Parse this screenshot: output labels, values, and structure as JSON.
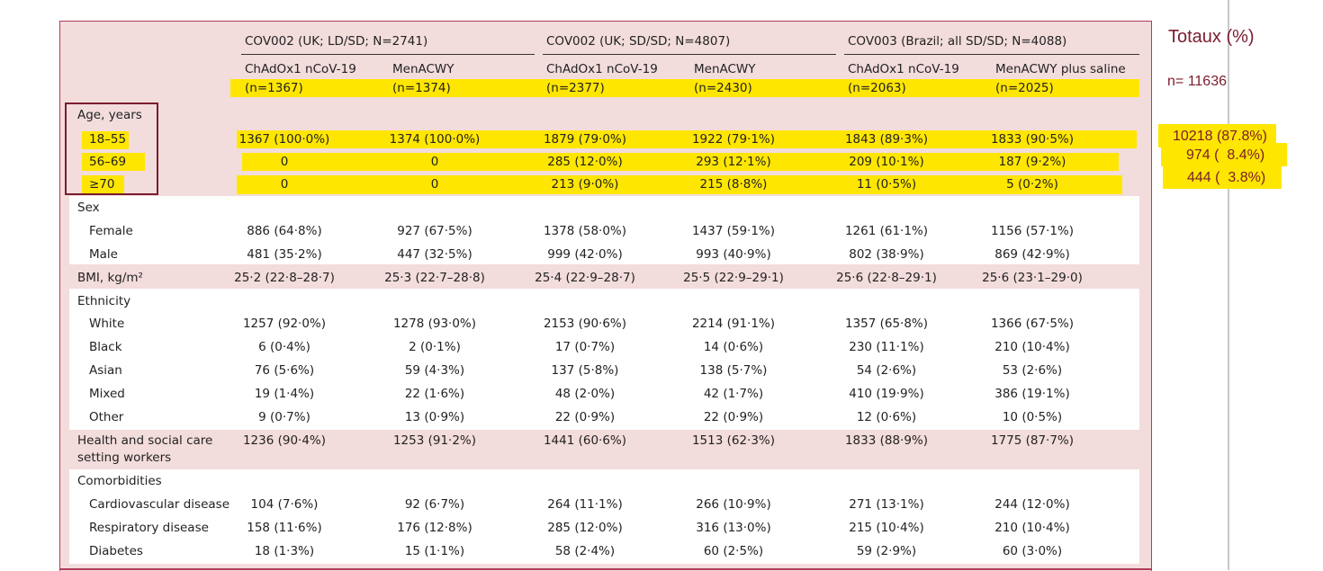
{
  "header": {
    "groups": [
      {
        "title": "COV002 (UK; LD/SD; N=2741)"
      },
      {
        "title": "COV002 (UK; SD/SD; N=4807)"
      },
      {
        "title": "COV003 (Brazil; all SD/SD; N=4088)"
      }
    ],
    "columns": [
      {
        "name": "ChAdOx1 nCoV-19",
        "n": "(n=1367)"
      },
      {
        "name": "MenACWY",
        "n": "(n=1374)"
      },
      {
        "name": "ChAdOx1 nCoV-19",
        "n": "(n=2377)"
      },
      {
        "name": "MenACWY",
        "n": "(n=2430)"
      },
      {
        "name": "ChAdOx1 nCoV-19",
        "n": "(n=2063)"
      },
      {
        "name": "MenACWY plus saline",
        "n": "(n=2025)"
      }
    ]
  },
  "rows": [
    {
      "label": "Age, years",
      "values": []
    },
    {
      "label": "18–55",
      "values": [
        "1367 (100·0%)",
        "1374 (100·0%)",
        "1879 (79·0%)",
        "1922 (79·1%)",
        "1843 (89·3%)",
        "1833 (90·5%)"
      ]
    },
    {
      "label": "56–69",
      "values": [
        "0",
        "0",
        "285 (12·0%)",
        "293 (12·1%)",
        "209 (10·1%)",
        "187 (9·2%)"
      ]
    },
    {
      "label": "≥70",
      "values": [
        "0",
        "0",
        "213 (9·0%)",
        "215 (8·8%)",
        "11 (0·5%)",
        "5 (0·2%)"
      ]
    },
    {
      "label": "Sex",
      "values": []
    },
    {
      "label": "Female",
      "values": [
        "886 (64·8%)",
        "927 (67·5%)",
        "1378 (58·0%)",
        "1437 (59·1%)",
        "1261 (61·1%)",
        "1156 (57·1%)"
      ]
    },
    {
      "label": "Male",
      "values": [
        "481 (35·2%)",
        "447 (32·5%)",
        "999 (42·0%)",
        "993 (40·9%)",
        "802 (38·9%)",
        "869 (42·9%)"
      ]
    },
    {
      "label": "BMI, kg/m²",
      "values": [
        "25·2 (22·8–28·7)",
        "25·3 (22·7–28·8)",
        "25·4 (22·9–28·7)",
        "25·5 (22·9–29·1)",
        "25·6 (22·8–29·1)",
        "25·6 (23·1–29·0)"
      ]
    },
    {
      "label": "Ethnicity",
      "values": []
    },
    {
      "label": "White",
      "values": [
        "1257 (92·0%)",
        "1278 (93·0%)",
        "2153 (90·6%)",
        "2214 (91·1%)",
        "1357 (65·8%)",
        "1366 (67·5%)"
      ]
    },
    {
      "label": "Black",
      "values": [
        "6 (0·4%)",
        "2 (0·1%)",
        "17 (0·7%)",
        "14 (0·6%)",
        "230 (11·1%)",
        "210 (10·4%)"
      ]
    },
    {
      "label": "Asian",
      "values": [
        "76 (5·6%)",
        "59 (4·3%)",
        "137 (5·8%)",
        "138 (5·7%)",
        "54 (2·6%)",
        "53 (2·6%)"
      ]
    },
    {
      "label": "Mixed",
      "values": [
        "19 (1·4%)",
        "22 (1·6%)",
        "48 (2·0%)",
        "42 (1·7%)",
        "410 (19·9%)",
        "386 (19·1%)"
      ]
    },
    {
      "label": "Other",
      "values": [
        "9 (0·7%)",
        "13 (0·9%)",
        "22 (0·9%)",
        "22 (0·9%)",
        "12 (0·6%)",
        "10 (0·5%)"
      ]
    },
    {
      "label": "Health and social care",
      "label2": "setting workers",
      "values": [
        "1236 (90·4%)",
        "1253 (91·2%)",
        "1441 (60·6%)",
        "1513 (62·3%)",
        "1833 (88·9%)",
        "1775 (87·7%)"
      ]
    },
    {
      "label": "Comorbidities",
      "values": []
    },
    {
      "label": "Cardiovascular disease",
      "values": [
        "104 (7·6%)",
        "92 (6·7%)",
        "264 (11·1%)",
        "266 (10·9%)",
        "271 (13·1%)",
        "244 (12·0%)"
      ]
    },
    {
      "label": "Respiratory disease",
      "values": [
        "158 (11·6%)",
        "176 (12·8%)",
        "285 (12·0%)",
        "316 (13·0%)",
        "215 (10·4%)",
        "210 (10·4%)"
      ]
    },
    {
      "label": "Diabetes",
      "values": [
        "18 (1·3%)",
        "15 (1·1%)",
        "58 (2·4%)",
        "60 (2·5%)",
        "59 (2·9%)",
        "60 (3·0%)"
      ]
    }
  ],
  "totals": {
    "title": "Totaux  (%)",
    "n": "n= 11636",
    "values": [
      "10218 (87.8%)",
      "974 (  8.4%)",
      "444 (  3.8%)"
    ]
  },
  "colors": {
    "panel": "#f3dcdc",
    "highlight": "#ffe600",
    "accent": "#7a1c2e"
  }
}
